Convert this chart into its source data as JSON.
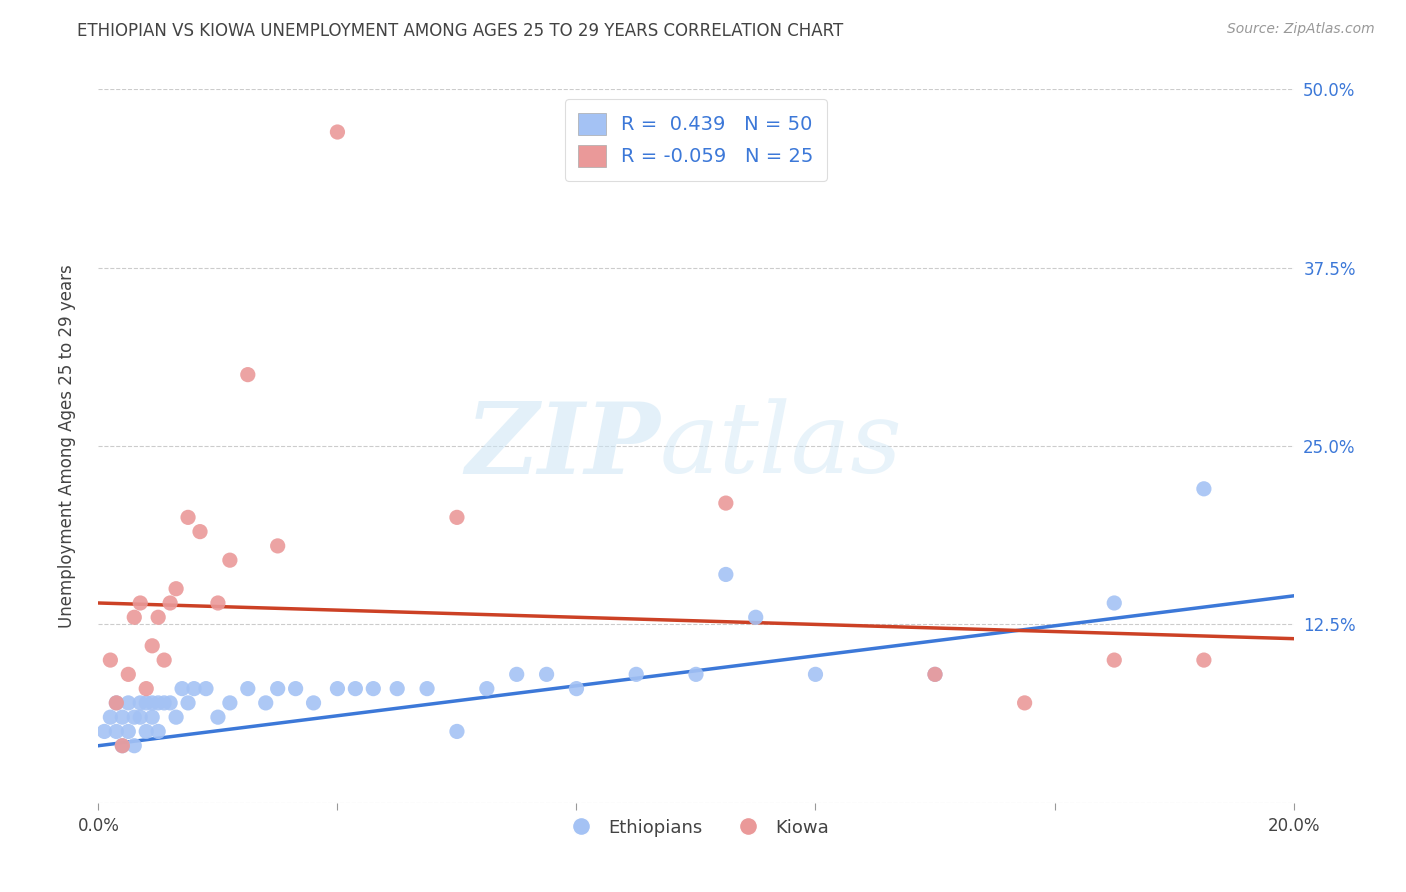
{
  "title": "ETHIOPIAN VS KIOWA UNEMPLOYMENT AMONG AGES 25 TO 29 YEARS CORRELATION CHART",
  "source": "Source: ZipAtlas.com",
  "ylabel": "Unemployment Among Ages 25 to 29 years",
  "xlim": [
    0.0,
    0.2
  ],
  "ylim": [
    0.0,
    0.5
  ],
  "blue_color": "#a4c2f4",
  "pink_color": "#ea9999",
  "blue_line_color": "#3c78d8",
  "pink_line_color": "#cc4125",
  "title_color": "#434343",
  "watermark_zip": "ZIP",
  "watermark_atlas": "atlas",
  "grid_color": "#cccccc",
  "background_color": "#ffffff",
  "legend_label_color": "#3c78d8",
  "source_color": "#999999",
  "eth_x": [
    0.001,
    0.002,
    0.003,
    0.003,
    0.004,
    0.004,
    0.005,
    0.005,
    0.006,
    0.006,
    0.007,
    0.007,
    0.008,
    0.008,
    0.009,
    0.009,
    0.01,
    0.01,
    0.011,
    0.012,
    0.013,
    0.014,
    0.015,
    0.016,
    0.018,
    0.02,
    0.022,
    0.025,
    0.028,
    0.03,
    0.033,
    0.036,
    0.04,
    0.043,
    0.046,
    0.05,
    0.055,
    0.06,
    0.065,
    0.07,
    0.075,
    0.08,
    0.09,
    0.1,
    0.105,
    0.11,
    0.12,
    0.14,
    0.17,
    0.185
  ],
  "eth_y": [
    0.05,
    0.06,
    0.05,
    0.07,
    0.04,
    0.06,
    0.05,
    0.07,
    0.04,
    0.06,
    0.06,
    0.07,
    0.05,
    0.07,
    0.06,
    0.07,
    0.05,
    0.07,
    0.07,
    0.07,
    0.06,
    0.08,
    0.07,
    0.08,
    0.08,
    0.06,
    0.07,
    0.08,
    0.07,
    0.08,
    0.08,
    0.07,
    0.08,
    0.08,
    0.08,
    0.08,
    0.08,
    0.05,
    0.08,
    0.09,
    0.09,
    0.08,
    0.09,
    0.09,
    0.16,
    0.13,
    0.09,
    0.09,
    0.14,
    0.22
  ],
  "kiowa_x": [
    0.002,
    0.003,
    0.004,
    0.005,
    0.006,
    0.007,
    0.008,
    0.009,
    0.01,
    0.011,
    0.012,
    0.013,
    0.015,
    0.017,
    0.02,
    0.022,
    0.025,
    0.03,
    0.04,
    0.06,
    0.105,
    0.14,
    0.155,
    0.17,
    0.185
  ],
  "kiowa_y": [
    0.1,
    0.07,
    0.04,
    0.09,
    0.13,
    0.14,
    0.08,
    0.11,
    0.13,
    0.1,
    0.14,
    0.15,
    0.2,
    0.19,
    0.14,
    0.17,
    0.3,
    0.18,
    0.47,
    0.2,
    0.21,
    0.09,
    0.07,
    0.1,
    0.1
  ]
}
